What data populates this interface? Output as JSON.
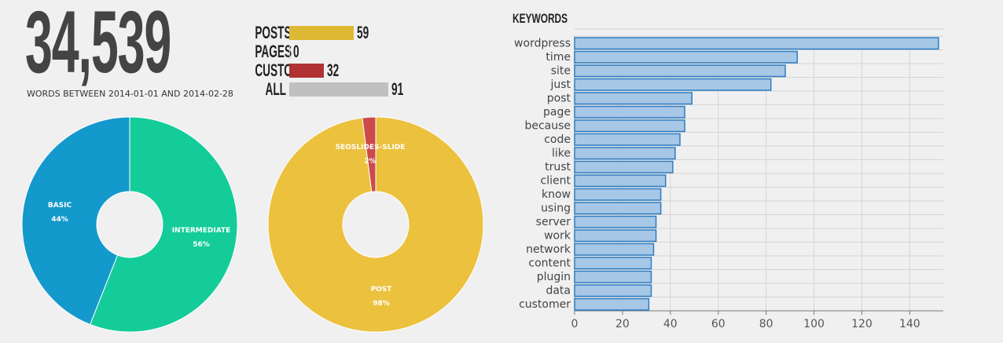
{
  "summary": {
    "word_count": "34,539",
    "words_label": "WORDS BETWEEN 2014-01-01 AND 2014-02-28"
  },
  "counts": [
    {
      "label": "POSTS",
      "value": 59,
      "color": "#ddb933"
    },
    {
      "label": "PAGES",
      "value": 0,
      "color": "#bbbbbb"
    },
    {
      "label": "CUSTOM",
      "value": 32,
      "color": "#b03233"
    },
    {
      "label": "ALL",
      "value": 91,
      "color": "#c0c0c0"
    }
  ],
  "colors": {
    "basic": "#1499cc",
    "intermediate": "#13cc99",
    "post": "#ebc13e",
    "seoslides": "#cc4a4a",
    "keyword_bar_fill": "#a7c7e7",
    "keyword_bar_stroke": "#2d7dc2"
  },
  "chart_data": [
    {
      "type": "pie",
      "slices": [
        {
          "label": "BASIC",
          "value": 44,
          "pct_label": "44%"
        },
        {
          "label": "INTERMEDIATE",
          "value": 56,
          "pct_label": "56%"
        }
      ]
    },
    {
      "type": "pie",
      "slices": [
        {
          "label": "POST",
          "value": 98,
          "pct_label": "98%"
        },
        {
          "label": "SEOSLIDES-SLIDE",
          "value": 2,
          "pct_label": "2%"
        }
      ]
    },
    {
      "type": "bar",
      "orientation": "horizontal",
      "title": "KEYWORDS",
      "categories": [
        "wordpress",
        "time",
        "site",
        "just",
        "post",
        "page",
        "because",
        "code",
        "like",
        "trust",
        "client",
        "know",
        "using",
        "server",
        "work",
        "network",
        "content",
        "plugin",
        "data",
        "customer"
      ],
      "values": [
        152,
        93,
        88,
        82,
        49,
        46,
        46,
        44,
        42,
        41,
        38,
        36,
        36,
        34,
        34,
        33,
        32,
        32,
        32,
        31
      ],
      "xlim": [
        0,
        154
      ],
      "xticks": [
        0,
        20,
        40,
        60,
        80,
        100,
        120,
        140
      ],
      "grid": true
    }
  ]
}
